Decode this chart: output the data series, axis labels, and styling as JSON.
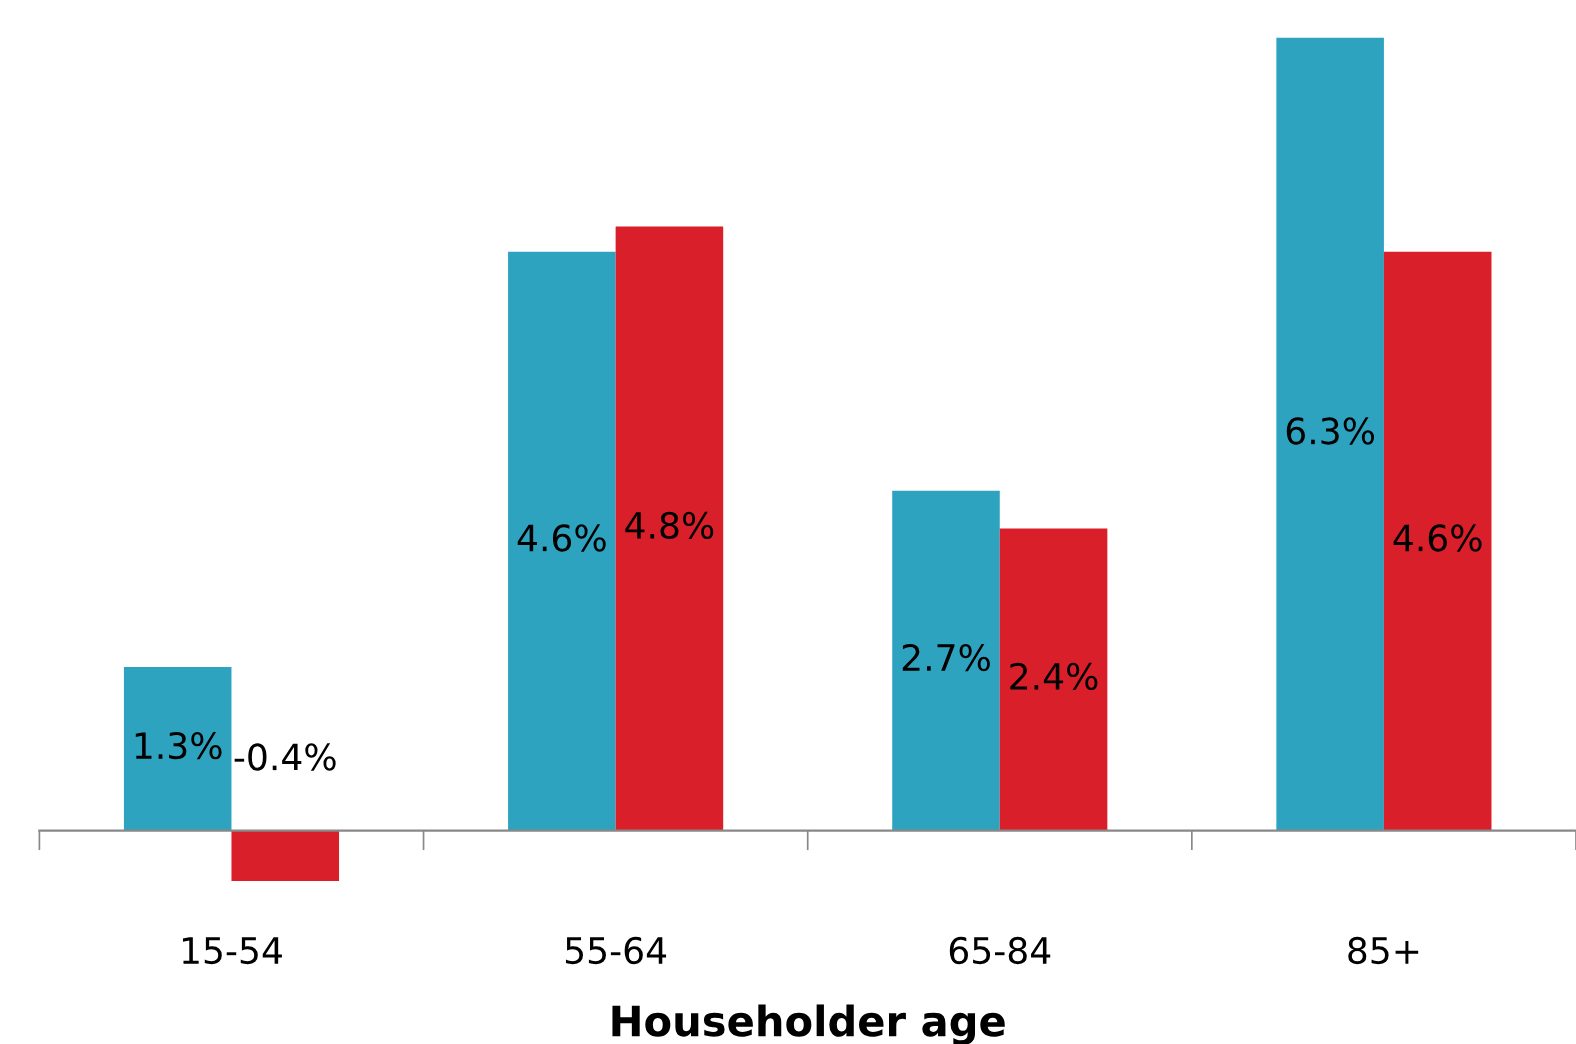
{
  "chart_data": {
    "type": "bar",
    "xlabel": "Householder age",
    "categories": [
      "15-54",
      "55-64",
      "65-84",
      "85+"
    ],
    "series": [
      {
        "color": "#2ea3c0",
        "values": [
          1.3,
          4.6,
          2.7,
          6.3
        ],
        "value_labels": [
          "1.3%",
          "4.6%",
          "2.7%",
          "6.3%"
        ]
      },
      {
        "color": "#d9202a",
        "values": [
          -0.4,
          4.8,
          2.4,
          4.6
        ],
        "value_labels": [
          "-0.4%",
          "4.8%",
          "2.4%",
          "4.6%"
        ]
      }
    ],
    "grid": false,
    "legend": false,
    "tick_labels": "x"
  }
}
